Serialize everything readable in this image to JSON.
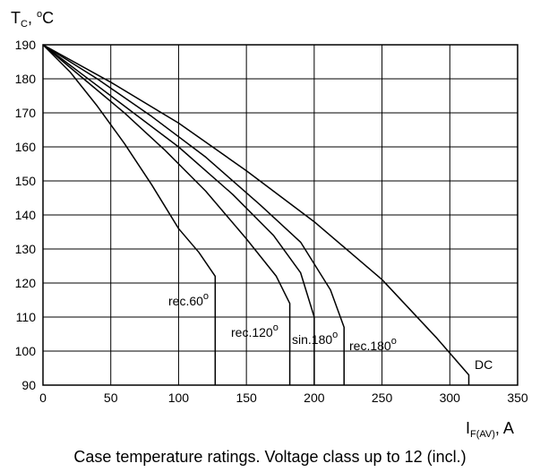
{
  "caption": "Case temperature ratings. Voltage class up to 12 (incl.)",
  "chart_data": {
    "type": "line",
    "ylabel": {
      "main": "T",
      "sub": "C",
      "rest": ", ",
      "sup": "o",
      "unit": "C"
    },
    "xlabel": {
      "main": "I",
      "sub": "F(AV)",
      "rest": ", A"
    },
    "xlim": [
      0,
      350
    ],
    "ylim": [
      90,
      190
    ],
    "xticks": [
      "0",
      "50",
      "100",
      "150",
      "200",
      "250",
      "300",
      "350"
    ],
    "yticks": [
      "90",
      "100",
      "110",
      "120",
      "130",
      "140",
      "150",
      "160",
      "170",
      "180",
      "190"
    ],
    "grid": true,
    "series": [
      {
        "name": "rec.60",
        "sup": "o",
        "x": [
          0,
          20,
          40,
          60,
          80,
          100,
          115,
          127,
          127
        ],
        "y": [
          190,
          182,
          172,
          161,
          149,
          136,
          129,
          122,
          90
        ]
      },
      {
        "name": "rec.120",
        "sup": "o",
        "x": [
          0,
          30,
          60,
          90,
          120,
          150,
          172,
          182,
          182
        ],
        "y": [
          190,
          180,
          170,
          159,
          147,
          133,
          122,
          114,
          90
        ]
      },
      {
        "name": "sin.180",
        "sup": "o",
        "x": [
          0,
          30,
          60,
          100,
          140,
          170,
          190,
          200,
          200
        ],
        "y": [
          190,
          181,
          172,
          160,
          146,
          134,
          123,
          110,
          90
        ]
      },
      {
        "name": "rec.180",
        "sup": "o",
        "x": [
          0,
          40,
          80,
          120,
          160,
          190,
          212,
          222,
          222
        ],
        "y": [
          190,
          180,
          169,
          157,
          143,
          132,
          118,
          107,
          90
        ]
      },
      {
        "name": "DC",
        "sup": "",
        "x": [
          0,
          50,
          100,
          150,
          200,
          250,
          290,
          314,
          314
        ],
        "y": [
          190,
          179,
          167,
          153,
          138,
          121,
          104,
          93,
          90
        ]
      }
    ]
  }
}
